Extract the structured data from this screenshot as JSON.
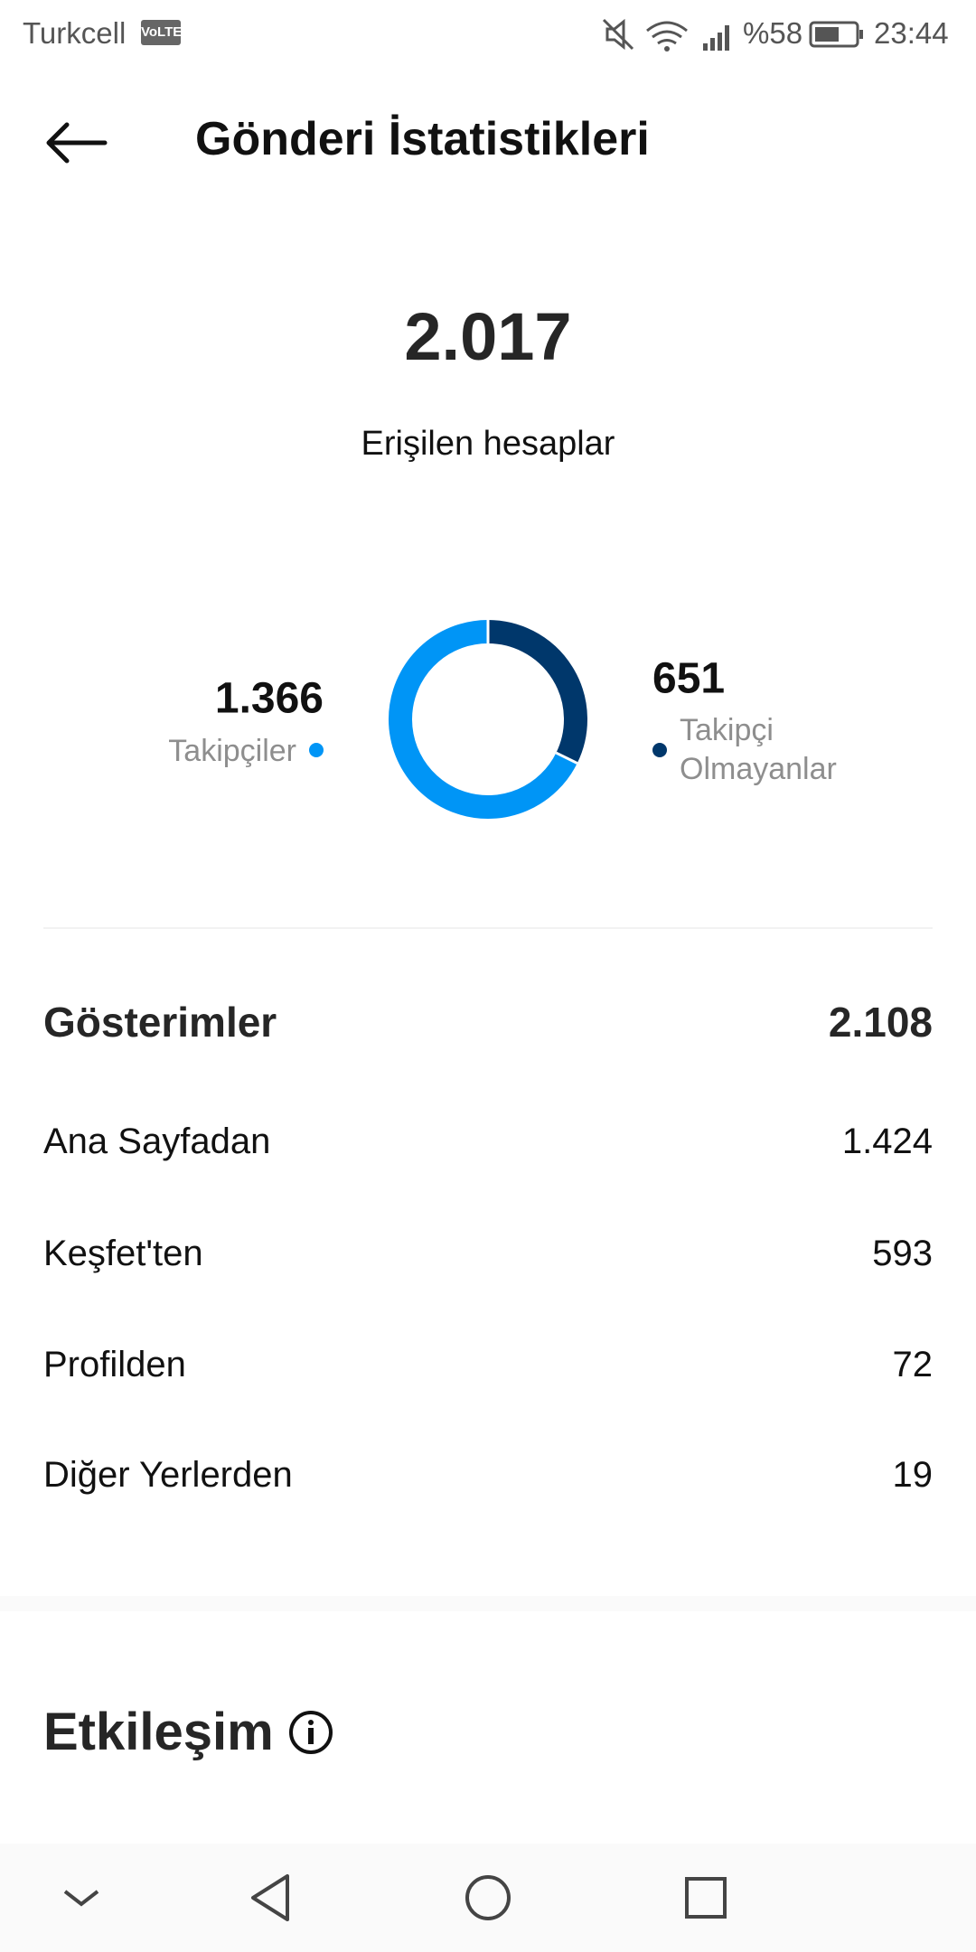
{
  "status_bar": {
    "carrier": "Turkcell",
    "network_badge": "VoLTE",
    "battery": "%58",
    "time": "23:44"
  },
  "header": {
    "title": "Gönderi İstatistikleri"
  },
  "reach": {
    "value": "2.017",
    "label": "Erişilen hesaplar"
  },
  "reach_chart": {
    "type": "pie",
    "categories": [
      "Takipçiler",
      "Takipçi Olmayanlar"
    ],
    "values": [
      1366,
      651
    ],
    "value_labels": [
      "1.366",
      "651"
    ],
    "colors": [
      "#0095f6",
      "#00376b"
    ]
  },
  "impressions": {
    "title": "Gösterimler",
    "total": "2.108",
    "rows": [
      [
        "Ana Sayfadan",
        "1.424"
      ],
      [
        "Keşfet'ten",
        "593"
      ],
      [
        "Profilden",
        "72"
      ],
      [
        "Diğer Yerlerden",
        "19"
      ]
    ]
  },
  "engagement": {
    "title": "Etkileşim"
  }
}
